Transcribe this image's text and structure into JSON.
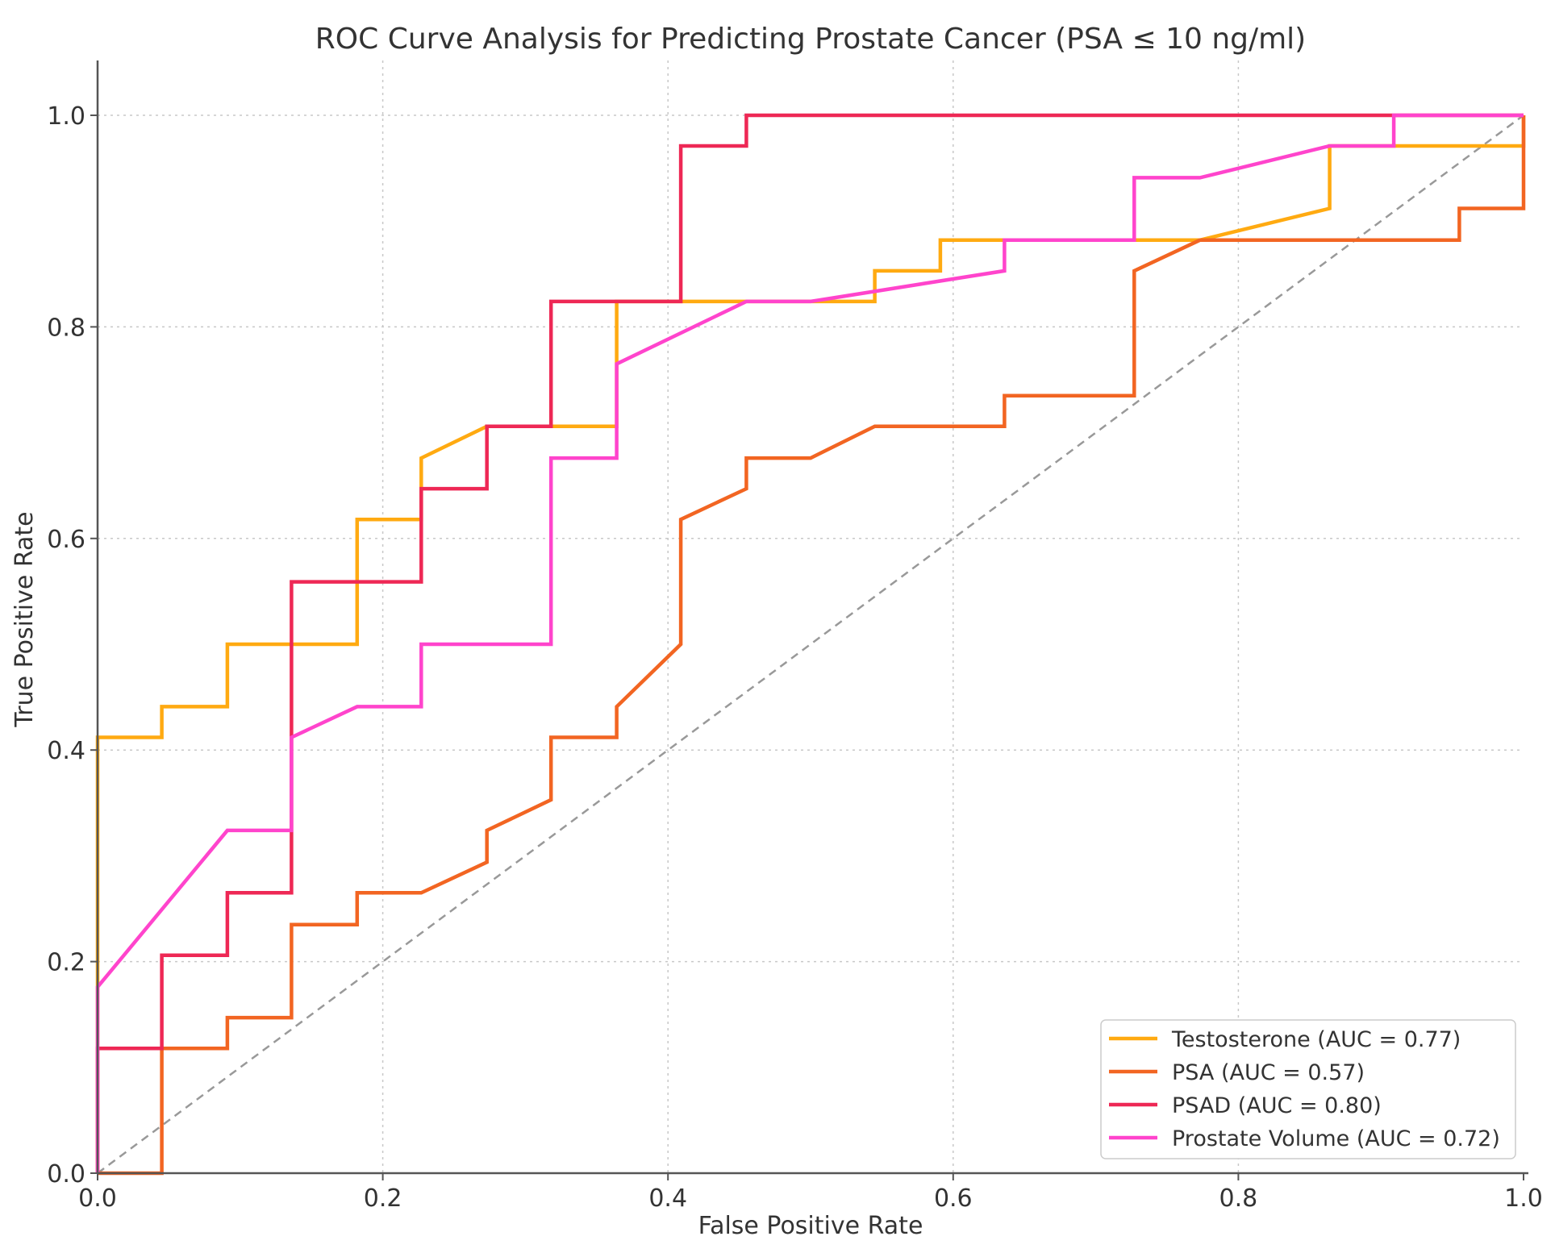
{
  "chart_data": {
    "type": "line",
    "title": "ROC Curve Analysis for Predicting Prostate Cancer (PSA ≤ 10 ng/ml)",
    "xlabel": "False Positive Rate",
    "ylabel": "True Positive Rate",
    "xlim": [
      0.0,
      1.0
    ],
    "ylim": [
      0.0,
      1.0
    ],
    "xticks": [
      "0.0",
      "0.2",
      "0.4",
      "0.6",
      "0.8",
      "1.0"
    ],
    "yticks": [
      "0.0",
      "0.2",
      "0.4",
      "0.6",
      "0.8",
      "1.0"
    ],
    "grid": true,
    "legend_position": "bottom-right",
    "chance_line": {
      "x": [
        0,
        1
      ],
      "y": [
        0,
        1
      ],
      "color": "#999999"
    },
    "series": [
      {
        "name": "Testosterone (AUC = 0.77)",
        "color": "#FFAA11",
        "points": [
          [
            0,
            0
          ],
          [
            0,
            0.412
          ],
          [
            0.045,
            0.412
          ],
          [
            0.045,
            0.441
          ],
          [
            0.091,
            0.441
          ],
          [
            0.091,
            0.5
          ],
          [
            0.182,
            0.5
          ],
          [
            0.182,
            0.618
          ],
          [
            0.227,
            0.618
          ],
          [
            0.227,
            0.676
          ],
          [
            0.273,
            0.706
          ],
          [
            0.364,
            0.706
          ],
          [
            0.364,
            0.824
          ],
          [
            0.545,
            0.824
          ],
          [
            0.545,
            0.853
          ],
          [
            0.591,
            0.853
          ],
          [
            0.591,
            0.882
          ],
          [
            0.773,
            0.882
          ],
          [
            0.864,
            0.912
          ],
          [
            0.864,
            0.971
          ],
          [
            1.0,
            0.971
          ],
          [
            1.0,
            1.0
          ]
        ]
      },
      {
        "name": "PSA (AUC = 0.57)",
        "color": "#F26522",
        "points": [
          [
            0,
            0
          ],
          [
            0.045,
            0
          ],
          [
            0.045,
            0.118
          ],
          [
            0.091,
            0.118
          ],
          [
            0.091,
            0.147
          ],
          [
            0.136,
            0.147
          ],
          [
            0.136,
            0.235
          ],
          [
            0.182,
            0.235
          ],
          [
            0.182,
            0.265
          ],
          [
            0.227,
            0.265
          ],
          [
            0.273,
            0.294
          ],
          [
            0.273,
            0.324
          ],
          [
            0.318,
            0.353
          ],
          [
            0.318,
            0.412
          ],
          [
            0.364,
            0.412
          ],
          [
            0.364,
            0.441
          ],
          [
            0.409,
            0.5
          ],
          [
            0.409,
            0.618
          ],
          [
            0.455,
            0.647
          ],
          [
            0.455,
            0.676
          ],
          [
            0.5,
            0.676
          ],
          [
            0.545,
            0.706
          ],
          [
            0.636,
            0.706
          ],
          [
            0.636,
            0.735
          ],
          [
            0.727,
            0.735
          ],
          [
            0.727,
            0.853
          ],
          [
            0.773,
            0.882
          ],
          [
            0.955,
            0.882
          ],
          [
            0.955,
            0.912
          ],
          [
            1.0,
            0.912
          ],
          [
            1.0,
            1.0
          ]
        ]
      },
      {
        "name": "PSAD (AUC = 0.80)",
        "color": "#EE2855",
        "points": [
          [
            0,
            0
          ],
          [
            0,
            0.118
          ],
          [
            0.045,
            0.118
          ],
          [
            0.045,
            0.206
          ],
          [
            0.091,
            0.206
          ],
          [
            0.091,
            0.265
          ],
          [
            0.136,
            0.265
          ],
          [
            0.136,
            0.559
          ],
          [
            0.227,
            0.559
          ],
          [
            0.227,
            0.647
          ],
          [
            0.273,
            0.647
          ],
          [
            0.273,
            0.706
          ],
          [
            0.318,
            0.706
          ],
          [
            0.318,
            0.824
          ],
          [
            0.409,
            0.824
          ],
          [
            0.409,
            0.971
          ],
          [
            0.455,
            0.971
          ],
          [
            0.455,
            1.0
          ],
          [
            1.0,
            1.0
          ]
        ]
      },
      {
        "name": "Prostate Volume (AUC = 0.72)",
        "color": "#FF44CC",
        "points": [
          [
            0,
            0
          ],
          [
            0,
            0.176
          ],
          [
            0.091,
            0.324
          ],
          [
            0.136,
            0.324
          ],
          [
            0.136,
            0.412
          ],
          [
            0.182,
            0.441
          ],
          [
            0.227,
            0.441
          ],
          [
            0.227,
            0.5
          ],
          [
            0.318,
            0.5
          ],
          [
            0.318,
            0.676
          ],
          [
            0.364,
            0.676
          ],
          [
            0.364,
            0.765
          ],
          [
            0.455,
            0.824
          ],
          [
            0.5,
            0.824
          ],
          [
            0.636,
            0.853
          ],
          [
            0.636,
            0.882
          ],
          [
            0.727,
            0.882
          ],
          [
            0.727,
            0.941
          ],
          [
            0.773,
            0.941
          ],
          [
            0.864,
            0.971
          ],
          [
            0.909,
            0.971
          ],
          [
            0.909,
            1.0
          ],
          [
            1.0,
            1.0
          ]
        ]
      }
    ]
  }
}
